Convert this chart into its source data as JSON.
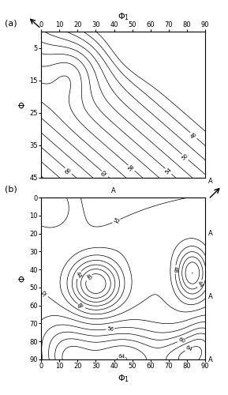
{
  "title_a": "(a)",
  "title_b": "(b)",
  "xlabel": "$\\Phi_1$",
  "ylabel": "$\\Phi$",
  "xticks_a": [
    0,
    10,
    20,
    30,
    40,
    50,
    60,
    70,
    80,
    90
  ],
  "yticks_a": [
    5,
    15,
    25,
    35,
    45
  ],
  "xticks_b": [
    0,
    10,
    20,
    30,
    40,
    50,
    60,
    70,
    80,
    90
  ],
  "yticks_b": [
    0,
    10,
    20,
    30,
    40,
    50,
    60,
    70,
    80,
    90
  ],
  "contour_levels_a": [
    44,
    46,
    48,
    50,
    52,
    54,
    56,
    58,
    60,
    62,
    64,
    66,
    68,
    70,
    72,
    74
  ],
  "contour_levels_b": [
    40,
    42,
    44,
    46,
    48,
    50,
    52,
    54,
    56,
    58,
    60,
    62,
    64,
    66,
    68,
    70,
    72
  ],
  "label_levels_a": [
    46,
    50,
    54,
    58,
    62,
    66,
    70,
    74
  ],
  "label_levels_b": [
    40,
    44,
    48,
    52,
    56,
    60,
    64,
    68,
    72
  ]
}
